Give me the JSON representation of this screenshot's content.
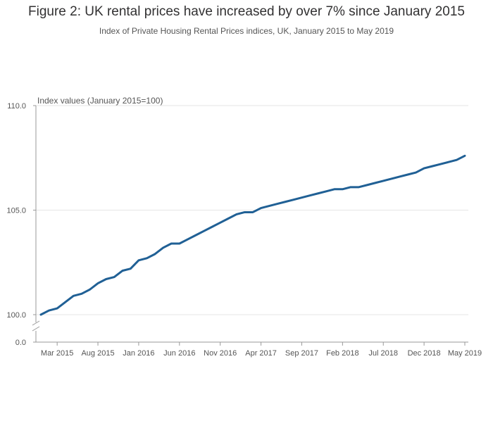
{
  "chart_data": {
    "type": "line",
    "title": "Figure 2: UK rental prices have increased by over 7% since January 2015",
    "subtitle": "Index of Private Housing Rental Prices indices, UK, January 2015 to May 2019",
    "ylabel": "Index values (January 2015=100)",
    "xlabel": "",
    "ylim": [
      100,
      110
    ],
    "y_ticks": [
      "110.0",
      "105.0",
      "100.0",
      "0.0"
    ],
    "y_axis_break": true,
    "x_tick_labels": [
      "Mar 2015",
      "Aug 2015",
      "Jan 2016",
      "Jun 2016",
      "Nov 2016",
      "Apr 2017",
      "Sep 2017",
      "Feb 2018",
      "Jul 2018",
      "Dec 2018",
      "May 2019"
    ],
    "x_tick_index": [
      2,
      7,
      12,
      17,
      22,
      27,
      32,
      37,
      42,
      47,
      52
    ],
    "grid": true,
    "legend": "none",
    "line_color": "#206095",
    "series": [
      {
        "x": [
          "Jan 2015",
          "Feb 2015",
          "Mar 2015",
          "Apr 2015",
          "May 2015",
          "Jun 2015",
          "Jul 2015",
          "Aug 2015",
          "Sep 2015",
          "Oct 2015",
          "Nov 2015",
          "Dec 2015",
          "Jan 2016",
          "Feb 2016",
          "Mar 2016",
          "Apr 2016",
          "May 2016",
          "Jun 2016",
          "Jul 2016",
          "Aug 2016",
          "Sep 2016",
          "Oct 2016",
          "Nov 2016",
          "Dec 2016",
          "Jan 2017",
          "Feb 2017",
          "Mar 2017",
          "Apr 2017",
          "May 2017",
          "Jun 2017",
          "Jul 2017",
          "Aug 2017",
          "Sep 2017",
          "Oct 2017",
          "Nov 2017",
          "Dec 2017",
          "Jan 2018",
          "Feb 2018",
          "Mar 2018",
          "Apr 2018",
          "May 2018",
          "Jun 2018",
          "Jul 2018",
          "Aug 2018",
          "Sep 2018",
          "Oct 2018",
          "Nov 2018",
          "Dec 2018",
          "Jan 2019",
          "Feb 2019",
          "Mar 2019",
          "Apr 2019",
          "May 2019"
        ],
        "values": [
          100.0,
          100.2,
          100.3,
          100.6,
          100.9,
          101.0,
          101.2,
          101.5,
          101.7,
          101.8,
          102.1,
          102.2,
          102.6,
          102.7,
          102.9,
          103.2,
          103.4,
          103.4,
          103.6,
          103.8,
          104.0,
          104.2,
          104.4,
          104.6,
          104.8,
          104.9,
          104.9,
          105.1,
          105.2,
          105.3,
          105.4,
          105.5,
          105.6,
          105.7,
          105.8,
          105.9,
          106.0,
          106.0,
          106.1,
          106.1,
          106.2,
          106.3,
          106.4,
          106.5,
          106.6,
          106.7,
          106.8,
          107.0,
          107.1,
          107.2,
          107.3,
          107.4,
          107.6
        ]
      }
    ]
  }
}
